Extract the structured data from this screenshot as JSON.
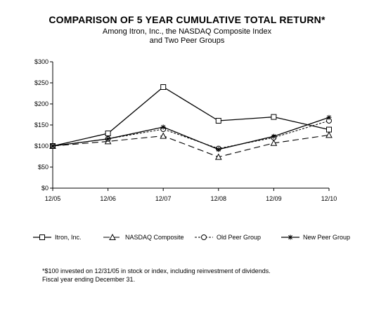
{
  "chart_data": {
    "type": "line",
    "title": "COMPARISON OF 5 YEAR CUMULATIVE TOTAL RETURN*",
    "subtitle": [
      "Among Itron, Inc., the NASDAQ Composite Index",
      "and Two Peer Groups"
    ],
    "categories": [
      "12/05",
      "12/06",
      "12/07",
      "12/08",
      "12/09",
      "12/10"
    ],
    "ylim": [
      0,
      300
    ],
    "yticks": [
      0,
      50,
      100,
      150,
      200,
      250,
      300
    ],
    "ytick_labels": [
      "$0",
      "$50",
      "$100",
      "$150",
      "$200",
      "$250",
      "$300"
    ],
    "grid": false,
    "legend_position": "bottom",
    "series": [
      {
        "name": "Itron, Inc.",
        "values": [
          100,
          130,
          240,
          160,
          169,
          139
        ],
        "color": "#000000",
        "dash": "solid",
        "marker": "square"
      },
      {
        "name": "NASDAQ Composite",
        "values": [
          100,
          111,
          124,
          74,
          107,
          126
        ],
        "color": "#000000",
        "dash": "long-dash",
        "marker": "triangle"
      },
      {
        "name": "Old Peer Group",
        "values": [
          100,
          117,
          140,
          94,
          120,
          160
        ],
        "color": "#000000",
        "dash": "short-dash",
        "marker": "circle"
      },
      {
        "name": "New Peer Group",
        "values": [
          100,
          117,
          145,
          92,
          123,
          168
        ],
        "color": "#000000",
        "dash": "solid",
        "marker": "star"
      }
    ]
  },
  "footnote": [
    "*$100 invested on 12/31/05 in stock or index, including reinvestment of dividends.",
    "Fiscal year ending December 31."
  ]
}
